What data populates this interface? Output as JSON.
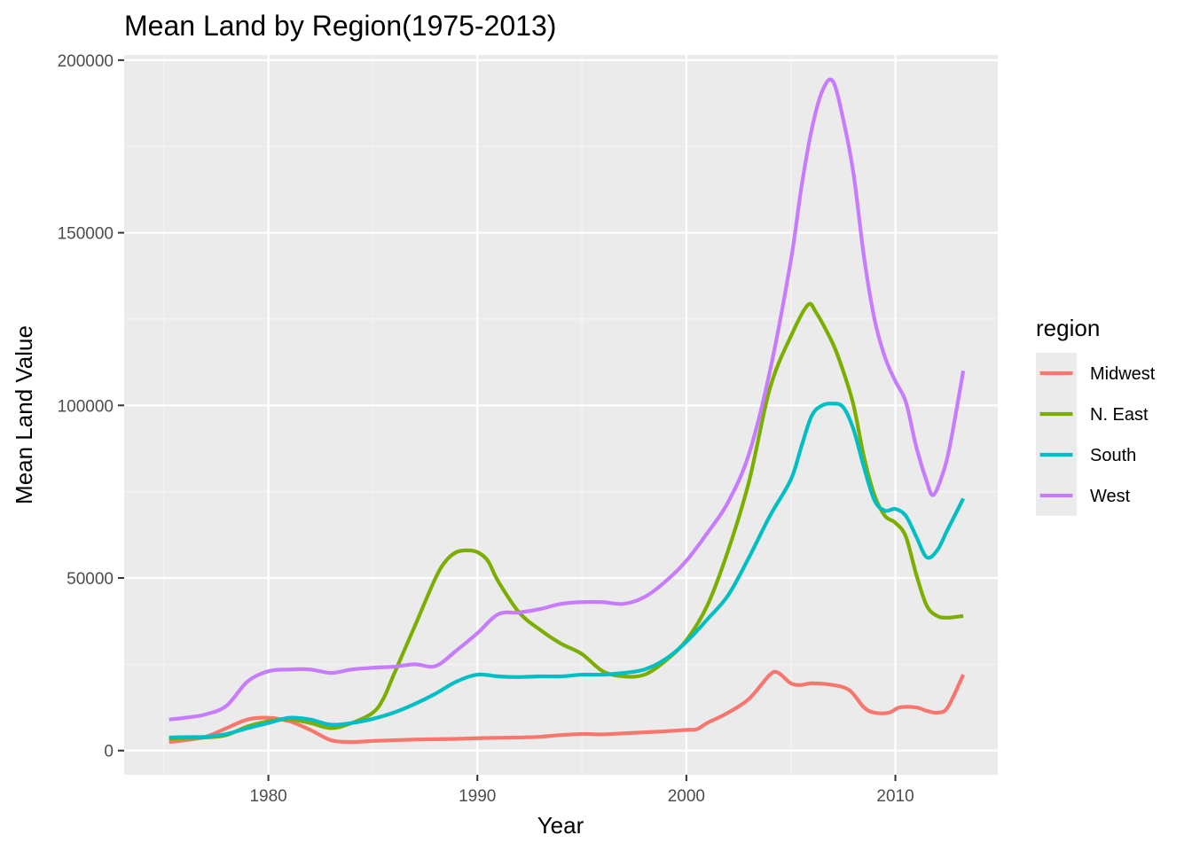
{
  "chart_data": {
    "type": "line",
    "title": "Mean Land by Region(1975-2013)",
    "xlabel": "Year",
    "ylabel": "Mean Land Value",
    "xlim": [
      1973.1,
      2014.9
    ],
    "ylim": [
      -7000,
      201500
    ],
    "x_ticks": [
      1980,
      1990,
      2000,
      2010
    ],
    "y_ticks": [
      0,
      50000,
      100000,
      150000,
      200000
    ],
    "x_tick_labels": [
      "1980",
      "1990",
      "2000",
      "2010"
    ],
    "y_tick_labels": [
      "0",
      "50000",
      "100000",
      "150000",
      "200000"
    ],
    "grid": true,
    "legend": {
      "title": "region",
      "placement": "right"
    },
    "series": [
      {
        "name": "Midwest",
        "color": "#F8766D",
        "x": [
          1975.25,
          1976,
          1977,
          1978,
          1979,
          1980,
          1981,
          1982,
          1983,
          1984,
          1985,
          1986,
          1987,
          1988,
          1989,
          1990,
          1991,
          1992,
          1993,
          1994,
          1995,
          1996,
          1997,
          1998,
          1999,
          2000,
          2000.5,
          2001,
          2002,
          2003,
          2004,
          2004.4,
          2005,
          2005.5,
          2006,
          2007,
          2007.8,
          2008.5,
          2009,
          2009.7,
          2010.2,
          2011,
          2011.5,
          2012,
          2012.5,
          2013.25
        ],
        "y": [
          2500,
          3000,
          4000,
          6500,
          9000,
          9500,
          8500,
          6000,
          3000,
          2500,
          2800,
          3000,
          3200,
          3300,
          3400,
          3600,
          3700,
          3800,
          4000,
          4500,
          4800,
          4700,
          5000,
          5300,
          5600,
          6000,
          6200,
          8000,
          11000,
          15000,
          22000,
          22500,
          19500,
          19000,
          19500,
          19000,
          17500,
          12500,
          11000,
          11000,
          12500,
          12500,
          11500,
          11000,
          12500,
          22000
        ]
      },
      {
        "name": "N. East",
        "color": "#7CAE00",
        "x": [
          1975.25,
          1976,
          1977,
          1978,
          1979,
          1980,
          1981,
          1982,
          1983,
          1984,
          1985,
          1985.5,
          1986,
          1987,
          1988,
          1988.5,
          1989,
          1989.5,
          1990,
          1990.5,
          1991,
          1992,
          1993,
          1994,
          1995,
          1996,
          1997,
          1998,
          1999,
          2000,
          2001,
          2002,
          2003,
          2004,
          2005,
          2005.8,
          2006.2,
          2007,
          2007.5,
          2008,
          2008.5,
          2009,
          2009.5,
          2010,
          2010.5,
          2011,
          2011.5,
          2012,
          2012.5,
          2013.25
        ],
        "y": [
          3500,
          3600,
          3800,
          4500,
          7000,
          8500,
          9000,
          8000,
          6500,
          8000,
          11000,
          15000,
          22000,
          36000,
          50000,
          55000,
          57500,
          58000,
          57500,
          55000,
          49000,
          40000,
          35000,
          31000,
          28000,
          23000,
          21500,
          22000,
          26000,
          32000,
          42000,
          58000,
          78000,
          105000,
          120000,
          129000,
          127000,
          118000,
          110000,
          100000,
          85000,
          74000,
          68000,
          66000,
          62000,
          51000,
          42000,
          39000,
          38500,
          39000
        ]
      },
      {
        "name": "South",
        "color": "#00BFC4",
        "x": [
          1975.25,
          1976,
          1977,
          1978,
          1979,
          1980,
          1981,
          1982,
          1983,
          1984,
          1985,
          1986,
          1987,
          1988,
          1989,
          1990,
          1991,
          1992,
          1993,
          1994,
          1995,
          1996,
          1997,
          1998,
          1999,
          2000,
          2001,
          2002,
          2003,
          2004,
          2005,
          2005.5,
          2006,
          2006.5,
          2007,
          2007.5,
          2008,
          2008.5,
          2009,
          2009.5,
          2010,
          2010.5,
          2011,
          2011.5,
          2012,
          2012.5,
          2013.25
        ],
        "y": [
          3800,
          3900,
          4000,
          4800,
          6500,
          8000,
          9500,
          9000,
          7500,
          8000,
          9200,
          11000,
          13500,
          16500,
          20000,
          22000,
          21500,
          21300,
          21500,
          21500,
          22000,
          22000,
          22500,
          23500,
          26500,
          31500,
          38000,
          45000,
          56000,
          68000,
          78500,
          88000,
          97000,
          100000,
          100500,
          99500,
          93000,
          82000,
          72500,
          69500,
          70000,
          68000,
          62000,
          56000,
          58000,
          64000,
          73000
        ]
      },
      {
        "name": "West",
        "color": "#C77CFF",
        "x": [
          1975.25,
          1976,
          1977,
          1978,
          1979,
          1980,
          1981,
          1982,
          1983,
          1984,
          1985,
          1986,
          1987,
          1988,
          1989,
          1990,
          1991,
          1992,
          1993,
          1994,
          1995,
          1996,
          1997,
          1998,
          1999,
          2000,
          2001,
          2002,
          2003,
          2004,
          2005,
          2005.5,
          2006,
          2006.5,
          2007,
          2007.5,
          2008,
          2008.5,
          2009,
          2009.5,
          2010,
          2010.5,
          2011,
          2011.5,
          2011.8,
          2012.2,
          2012.6,
          2013.25
        ],
        "y": [
          9000,
          9500,
          10500,
          13000,
          20000,
          23000,
          23500,
          23500,
          22500,
          23500,
          24000,
          24300,
          25000,
          24500,
          29000,
          34000,
          39500,
          40000,
          41000,
          42500,
          43000,
          43000,
          42500,
          44500,
          49000,
          55000,
          63000,
          72000,
          86000,
          110000,
          142000,
          163000,
          180000,
          191000,
          194000,
          183000,
          167000,
          143000,
          125000,
          114000,
          107000,
          101000,
          88000,
          78000,
          74000,
          79000,
          88000,
          110000
        ]
      }
    ]
  }
}
